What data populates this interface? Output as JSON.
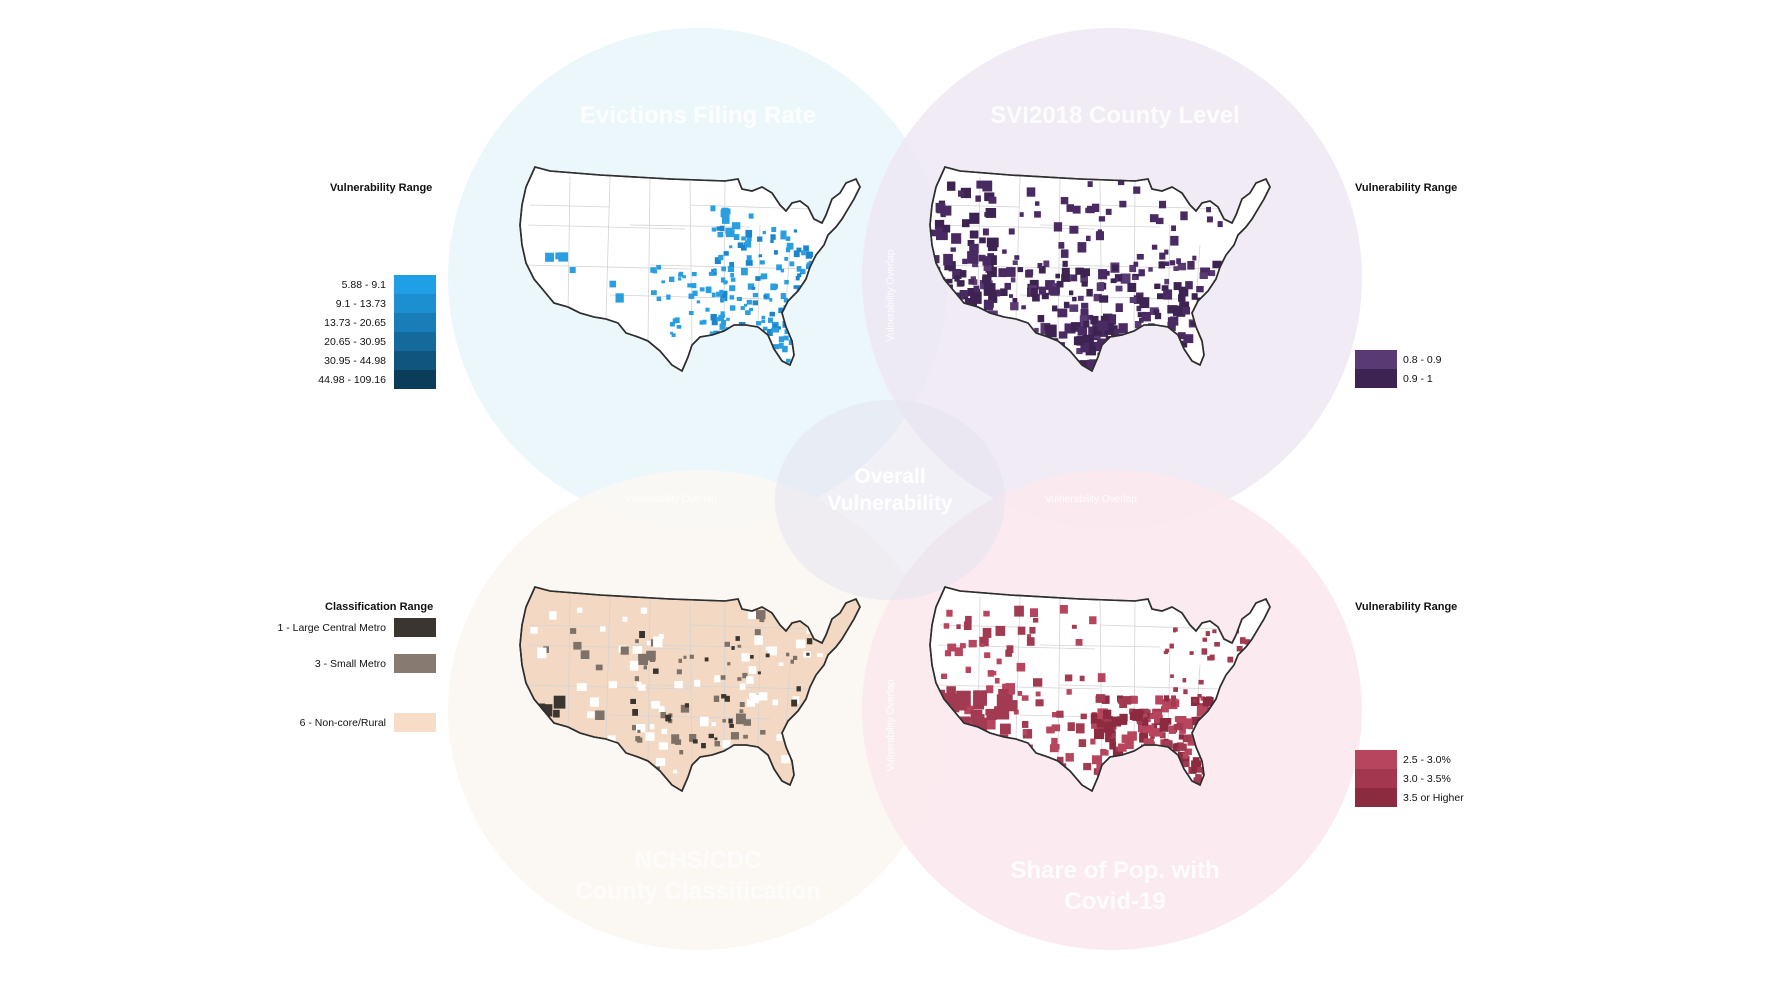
{
  "center_label": [
    "Overall",
    "Vulnerability"
  ],
  "overlap_label": "Vulnerability Overlap",
  "panels": {
    "evictions": {
      "title": "Evictions Filing Rate",
      "legend_title": "Vulnerability Range",
      "legend": [
        {
          "label": "5.88 - 9.1",
          "color": "#1e9fe6"
        },
        {
          "label": "9.1 - 13.73",
          "color": "#1b8fd0"
        },
        {
          "label": "13.73 - 20.65",
          "color": "#197eb8"
        },
        {
          "label": "20.65 - 30.95",
          "color": "#156a9c"
        },
        {
          "label": "30.95 - 44.98",
          "color": "#10557e"
        },
        {
          "label": "44.98 - 109.16",
          "color": "#0b3c5a"
        }
      ],
      "fill_color": "#2a9fe0"
    },
    "svi": {
      "title": "SVI2018 County Level",
      "legend_title": "Vulnerability Range",
      "legend": [
        {
          "label": "0.8 - 0.9",
          "color": "#5a3a73"
        },
        {
          "label": "0.9 - 1",
          "color": "#3d2352"
        }
      ],
      "fill_color": "#4a2a63"
    },
    "classification": {
      "title": "NCHS/CDC County Classification",
      "title_lines": [
        "NCHS/CDC",
        "County Classification"
      ],
      "legend_title": "Classification Range",
      "legend": [
        {
          "label": "1 - Large Central Metro",
          "color": "#3b3530"
        },
        {
          "label": "3 - Small Metro",
          "color": "#867a71"
        },
        {
          "label": "6 - Non-core/Rural",
          "color": "#f7dcc8"
        }
      ],
      "fill_color": "#f3d9c3",
      "accent_color": "#7d7168",
      "dark_color": "#3b3530"
    },
    "covid": {
      "title": "Share of Pop. with Covid-19",
      "title_lines": [
        "Share of Pop. with",
        "Covid-19"
      ],
      "legend_title": "Vulnerability Range",
      "legend": [
        {
          "label": "2.5 - 3.0%",
          "color": "#b8455e"
        },
        {
          "label": "3.0 - 3.5%",
          "color": "#a3374f"
        },
        {
          "label": "3.5 or Higher",
          "color": "#8c2a40"
        }
      ],
      "fill_color": "#a23a52"
    }
  }
}
